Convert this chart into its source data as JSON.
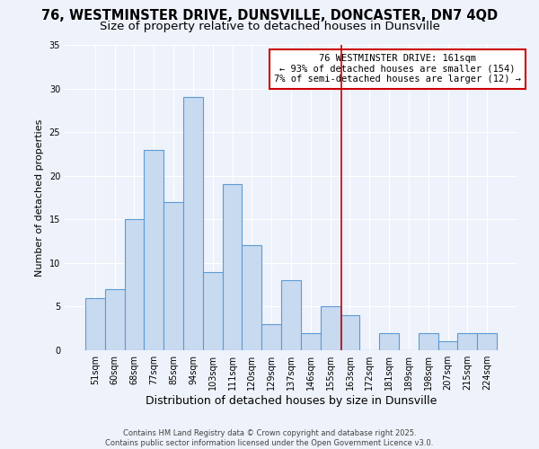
{
  "title": "76, WESTMINSTER DRIVE, DUNSVILLE, DONCASTER, DN7 4QD",
  "subtitle": "Size of property relative to detached houses in Dunsville",
  "xlabel": "Distribution of detached houses by size in Dunsville",
  "ylabel": "Number of detached properties",
  "bar_color": "#c8daf0",
  "bar_edge_color": "#5b9bd5",
  "background_color": "#eef2fa",
  "grid_color": "#ffffff",
  "bins": [
    "51sqm",
    "60sqm",
    "68sqm",
    "77sqm",
    "85sqm",
    "94sqm",
    "103sqm",
    "111sqm",
    "120sqm",
    "129sqm",
    "137sqm",
    "146sqm",
    "155sqm",
    "163sqm",
    "172sqm",
    "181sqm",
    "189sqm",
    "198sqm",
    "207sqm",
    "215sqm",
    "224sqm"
  ],
  "values": [
    6,
    7,
    15,
    23,
    17,
    29,
    9,
    19,
    12,
    3,
    8,
    2,
    5,
    4,
    0,
    2,
    0,
    2,
    1,
    2,
    2
  ],
  "vline_x": 12.55,
  "vline_color": "#cc0000",
  "annotation_text": "76 WESTMINSTER DRIVE: 161sqm\n← 93% of detached houses are smaller (154)\n7% of semi-detached houses are larger (12) →",
  "annotation_box_color": "#cc0000",
  "ylim": [
    0,
    35
  ],
  "yticks": [
    0,
    5,
    10,
    15,
    20,
    25,
    30,
    35
  ],
  "footer1": "Contains HM Land Registry data © Crown copyright and database right 2025.",
  "footer2": "Contains public sector information licensed under the Open Government Licence v3.0.",
  "title_fontsize": 10.5,
  "subtitle_fontsize": 9.5,
  "xlabel_fontsize": 9,
  "ylabel_fontsize": 8,
  "tick_fontsize": 7,
  "annotation_fontsize": 7.5,
  "footer_fontsize": 6
}
